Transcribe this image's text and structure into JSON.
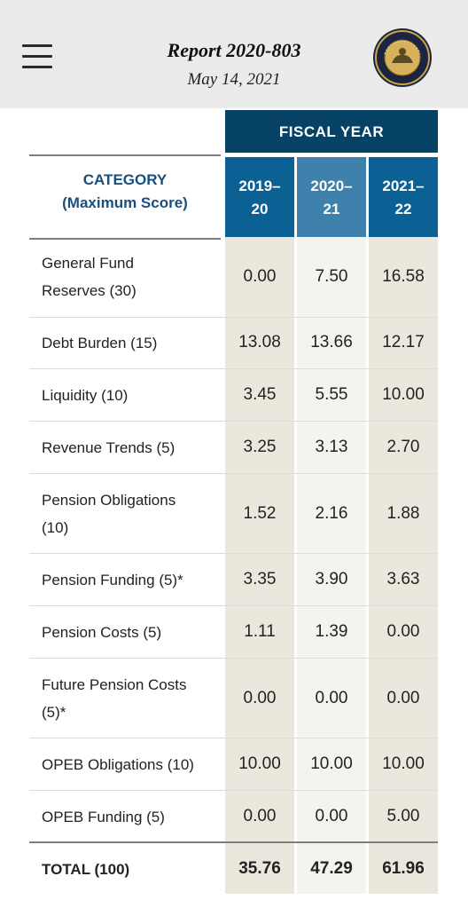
{
  "header": {
    "title": "Report 2020-803",
    "date": "May 14, 2021",
    "seal_text": "AUDITOR of the STATE of CALIFORNIA"
  },
  "table": {
    "group_header": "FISCAL YEAR",
    "category_header_line1": "CATEGORY",
    "category_header_line2": "(Maximum Score)",
    "years": [
      {
        "line1": "2019–",
        "line2": "20"
      },
      {
        "line1": "2020–",
        "line2": "21"
      },
      {
        "line1": "2021–",
        "line2": "22"
      }
    ],
    "rows": [
      {
        "line1": "General Fund",
        "line2": "Reserves (30)",
        "values": [
          "0.00",
          "7.50",
          "16.58"
        ]
      },
      {
        "line1": "Debt Burden (15)",
        "line2": "",
        "values": [
          "13.08",
          "13.66",
          "12.17"
        ]
      },
      {
        "line1": "Liquidity (10)",
        "line2": "",
        "values": [
          "3.45",
          "5.55",
          "10.00"
        ]
      },
      {
        "line1": "Revenue Trends (5)",
        "line2": "",
        "values": [
          "3.25",
          "3.13",
          "2.70"
        ]
      },
      {
        "line1": "Pension Obligations",
        "line2": "(10)",
        "values": [
          "1.52",
          "2.16",
          "1.88"
        ]
      },
      {
        "line1": "Pension Funding (5)*",
        "line2": "",
        "values": [
          "3.35",
          "3.90",
          "3.63"
        ]
      },
      {
        "line1": "Pension Costs (5)",
        "line2": "",
        "values": [
          "1.11",
          "1.39",
          "0.00"
        ]
      },
      {
        "line1": "Future Pension Costs",
        "line2": "(5)*",
        "values": [
          "0.00",
          "0.00",
          "0.00"
        ]
      },
      {
        "line1": "OPEB Obligations (10)",
        "line2": "",
        "values": [
          "10.00",
          "10.00",
          "10.00"
        ]
      },
      {
        "line1": "OPEB Funding (5)",
        "line2": "",
        "values": [
          "0.00",
          "0.00",
          "5.00"
        ]
      }
    ],
    "total": {
      "label": "TOTAL (100)",
      "values": [
        "35.76",
        "47.29",
        "61.96"
      ]
    }
  },
  "colors": {
    "header_dark_blue": "#054266",
    "year_blue": "#0b6194",
    "year_blue_highlight": "#3e81ad",
    "category_text_blue": "#175080",
    "column_tan": "#ebe7dd",
    "column_light": "#f4f3ed"
  }
}
